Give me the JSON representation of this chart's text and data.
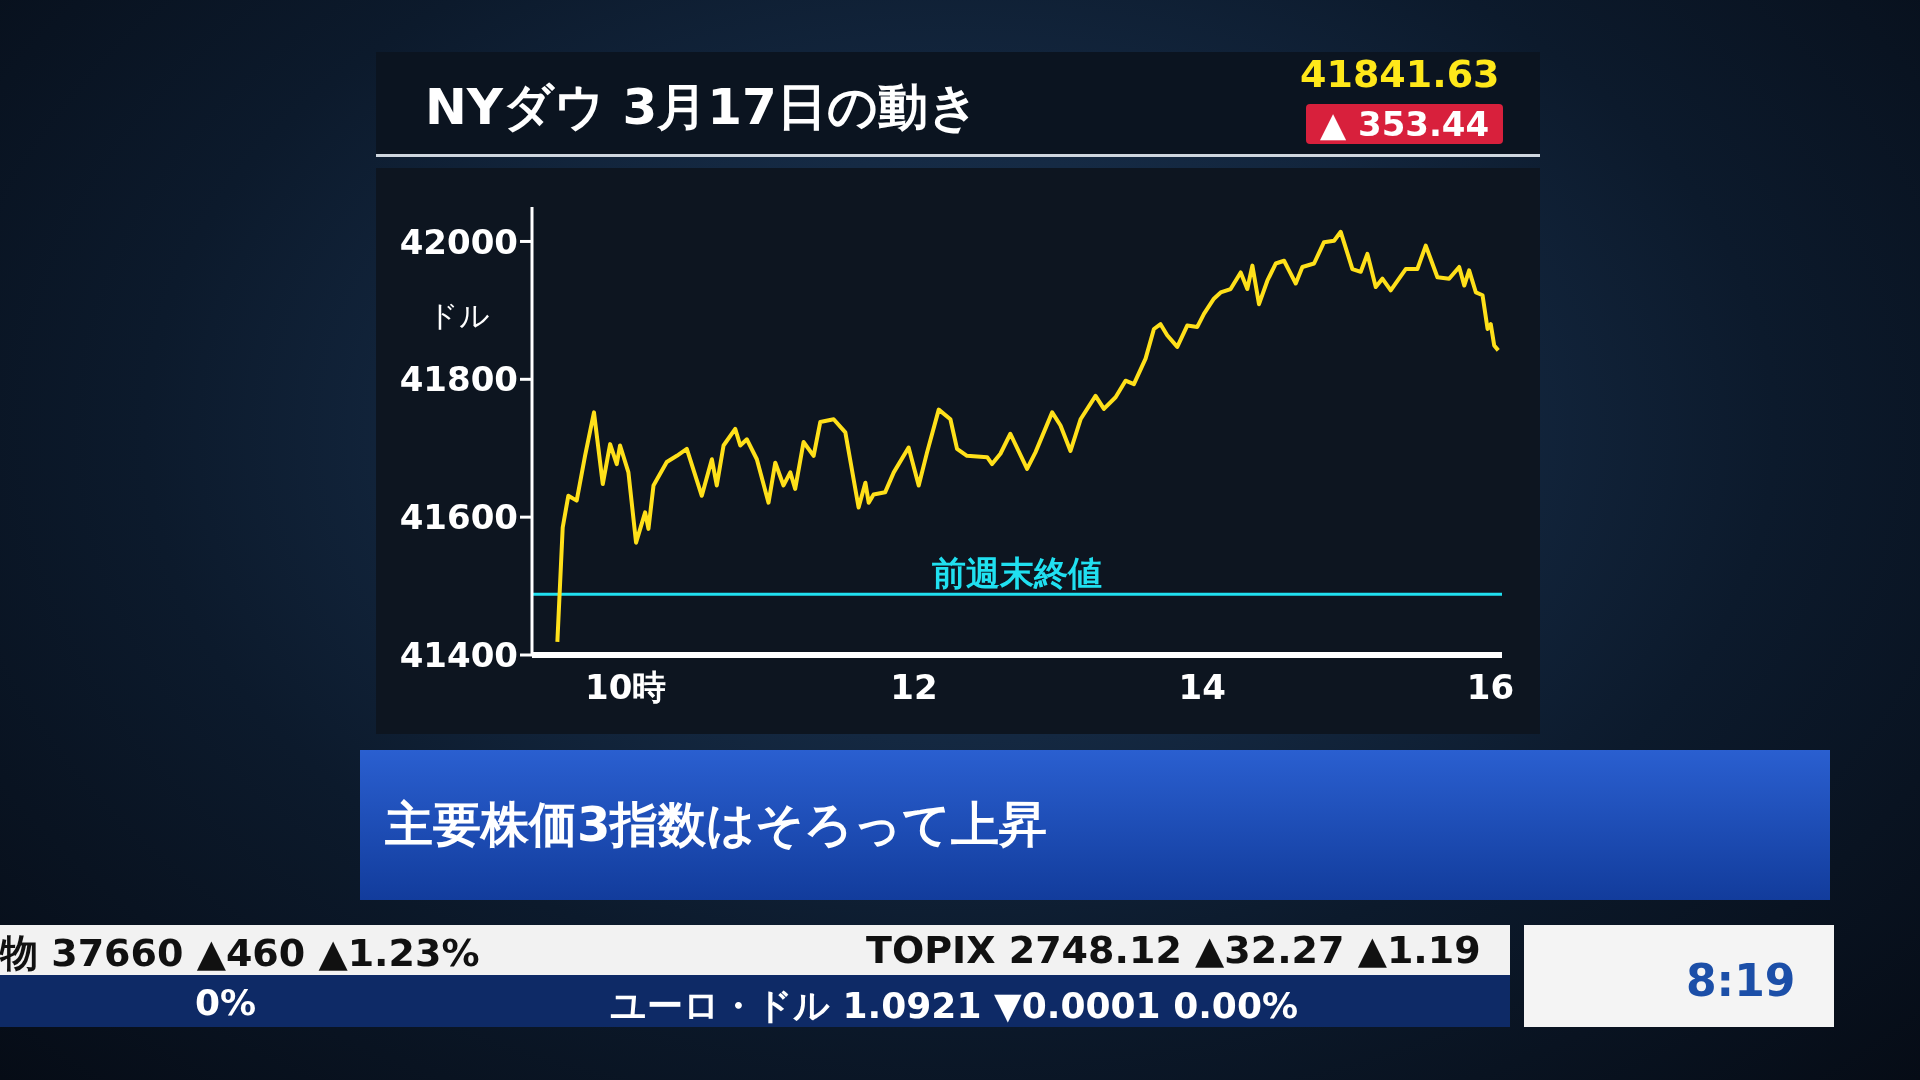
{
  "chart_data": {
    "type": "line",
    "title": "NYダウ 3月17日の動き",
    "ylabel": "ドル",
    "annotations": [
      "41841.63",
      "▲ 353.44",
      "主要株価3指数はそろって上昇",
      "物 37660 ▲460 ▲1.23%",
      "TOPIX 2748.12 ▲32.27 ▲1.19",
      "0%",
      "ユーロ・ドル 1.0921 ▼0.0001 0.00%",
      "8:19"
    ],
    "xlim": [
      9.35,
      16.08
    ],
    "xticks": [
      {
        "value": 10,
        "label": "10時"
      },
      12,
      14,
      16
    ],
    "ylim": [
      41400,
      42050
    ],
    "yticks": [
      41400,
      41600,
      41800,
      42000
    ],
    "ref_lines": [
      {
        "axis": "y",
        "value": 41488,
        "label": "前週末終値",
        "color": "#20e0f0"
      }
    ],
    "series": [
      {
        "color": "#ffe01a",
        "x": [
          9.526,
          9.563,
          9.602,
          9.66,
          9.718,
          9.78,
          9.841,
          9.892,
          9.938,
          9.961,
          10.019,
          10.072,
          10.135,
          10.158,
          10.193,
          10.285,
          10.355,
          10.424,
          10.528,
          10.598,
          10.632,
          10.679,
          10.76,
          10.795,
          10.841,
          10.91,
          10.991,
          11.038,
          11.095,
          11.142,
          11.176,
          11.234,
          11.304,
          11.35,
          11.443,
          11.524,
          11.616,
          11.663,
          11.686,
          11.72,
          11.8,
          11.86,
          11.963,
          12.033,
          12.091,
          12.172,
          12.253,
          12.299,
          12.368,
          12.508,
          12.542,
          12.6,
          12.669,
          12.785,
          12.843,
          12.959,
          13.017,
          13.086,
          13.156,
          13.26,
          13.318,
          13.399,
          13.468,
          13.526,
          13.607,
          13.665,
          13.711,
          13.757,
          13.827,
          13.896,
          13.966,
          14.012,
          14.081,
          14.128,
          14.197,
          14.267,
          14.313,
          14.348,
          14.394,
          14.452,
          14.51,
          14.568,
          14.602,
          14.649,
          14.695,
          14.776,
          14.845,
          14.915,
          14.961,
          15.042,
          15.1,
          15.146,
          15.204,
          15.25,
          15.308,
          15.412,
          15.493,
          15.551,
          15.632,
          15.713,
          15.783,
          15.818,
          15.852,
          15.899,
          15.945,
          15.98,
          16.002,
          16.026,
          16.054
        ],
        "values": [
          41419,
          41585,
          41631,
          41624,
          41689,
          41752,
          41648,
          41706,
          41677,
          41704,
          41665,
          41563,
          41607,
          41583,
          41646,
          41680,
          41689,
          41699,
          41631,
          41684,
          41646,
          41704,
          41728,
          41704,
          41713,
          41684,
          41621,
          41679,
          41646,
          41665,
          41641,
          41709,
          41689,
          41738,
          41742,
          41723,
          41614,
          41650,
          41621,
          41633,
          41636,
          41665,
          41701,
          41646,
          41694,
          41756,
          41742,
          41699,
          41689,
          41687,
          41677,
          41692,
          41721,
          41670,
          41694,
          41752,
          41733,
          41696,
          41742,
          41776,
          41757,
          41774,
          41798,
          41793,
          41830,
          41873,
          41880,
          41864,
          41847,
          41878,
          41876,
          41895,
          41917,
          41926,
          41931,
          41955,
          41931,
          41965,
          41909,
          41943,
          41968,
          41972,
          41958,
          41939,
          41963,
          41968,
          41999,
          42001,
          42014,
          41960,
          41956,
          41982,
          41934,
          41946,
          41929,
          41960,
          41960,
          41994,
          41948,
          41946,
          41963,
          41936,
          41958,
          41926,
          41922,
          41873,
          41880,
          41849,
          41842
        ]
      }
    ]
  }
}
